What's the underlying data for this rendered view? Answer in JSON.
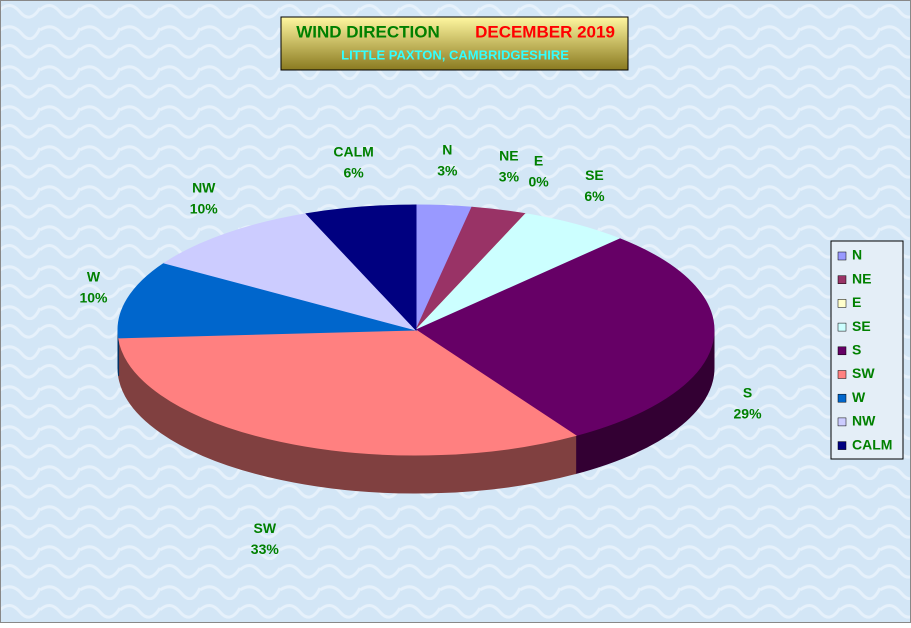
{
  "chart_data": {
    "type": "pie",
    "title": "WIND DIRECTION",
    "title_period": "DECEMBER 2019",
    "subtitle": "LITTLE PAXTON, CAMBRIDGESHIRE",
    "categories": [
      "N",
      "NE",
      "E",
      "SE",
      "S",
      "SW",
      "W",
      "NW",
      "CALM"
    ],
    "values": [
      3,
      3,
      0,
      6,
      29,
      33,
      10,
      10,
      6
    ],
    "value_labels": [
      "3%",
      "3%",
      "0%",
      "6%",
      "29%",
      "33%",
      "10%",
      "10%",
      "6%"
    ],
    "colors": [
      "#9999ff",
      "#993366",
      "#ffffcc",
      "#ccffff",
      "#660066",
      "#ff8080",
      "#0066cc",
      "#ccccff",
      "#000080"
    ],
    "legend": "right"
  }
}
